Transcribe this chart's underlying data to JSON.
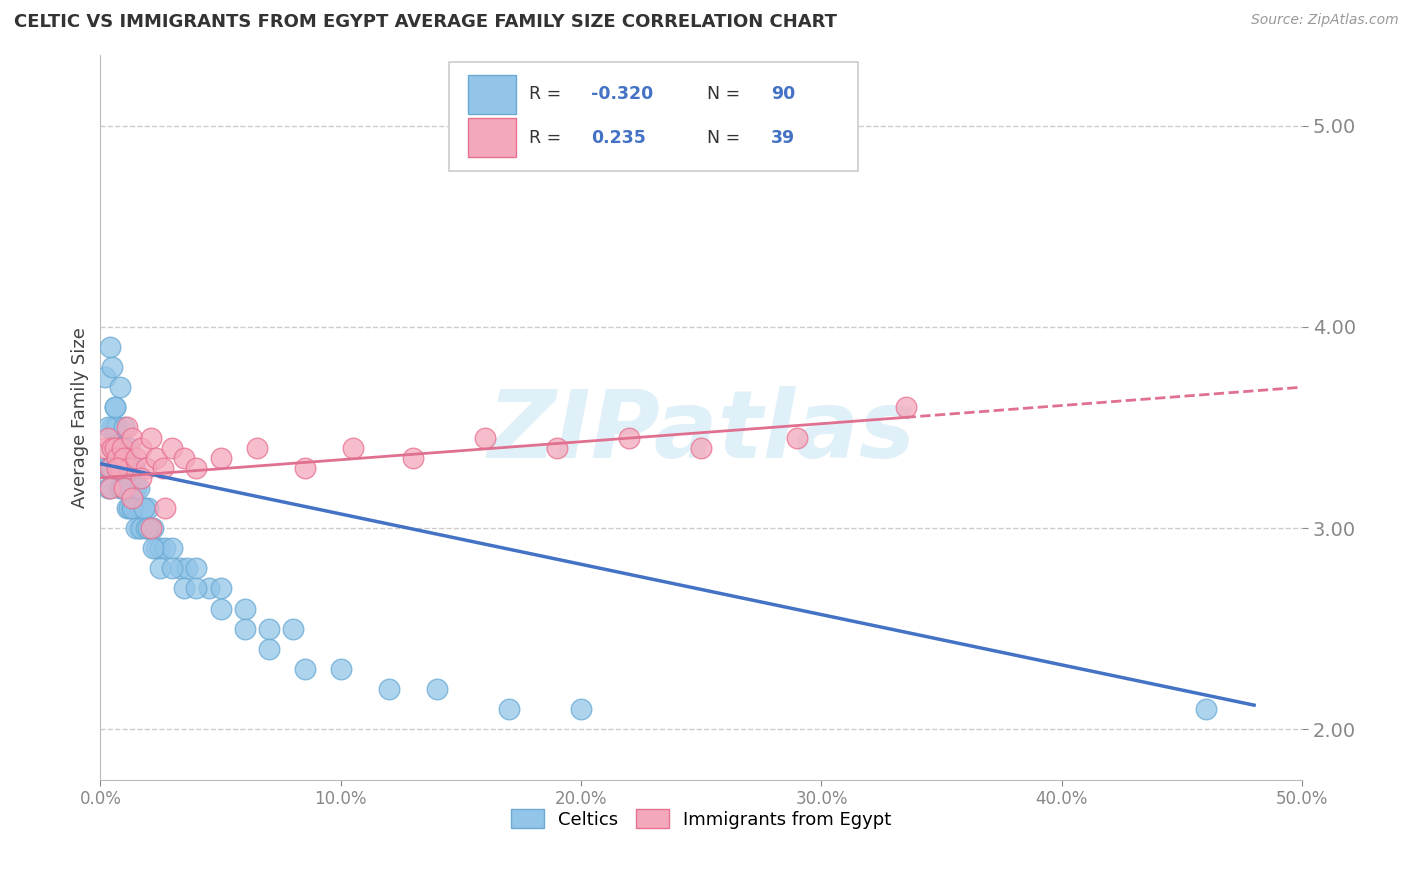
{
  "title": "CELTIC VS IMMIGRANTS FROM EGYPT AVERAGE FAMILY SIZE CORRELATION CHART",
  "source": "Source: ZipAtlas.com",
  "ylabel": "Average Family Size",
  "xlim": [
    0.0,
    50.0
  ],
  "ylim": [
    1.75,
    5.35
  ],
  "yticks": [
    2.0,
    3.0,
    4.0,
    5.0
  ],
  "xticks": [
    0.0,
    10.0,
    20.0,
    30.0,
    40.0,
    50.0
  ],
  "celtics_color": "#92c5e8",
  "egypt_color": "#f4a8bb",
  "celtics_edge_color": "#6aaad4",
  "egypt_edge_color": "#e87090",
  "celtics_trend_color": "#4472C4",
  "egypt_trend_color": "#e07090",
  "celtics_x": [
    0.2,
    0.3,
    0.3,
    0.4,
    0.4,
    0.5,
    0.5,
    0.5,
    0.6,
    0.6,
    0.6,
    0.7,
    0.7,
    0.7,
    0.8,
    0.8,
    0.8,
    0.9,
    0.9,
    0.9,
    1.0,
    1.0,
    1.0,
    1.1,
    1.1,
    1.1,
    1.2,
    1.2,
    1.2,
    1.3,
    1.3,
    1.4,
    1.4,
    1.5,
    1.5,
    1.6,
    1.6,
    1.7,
    1.8,
    1.9,
    2.0,
    2.0,
    2.1,
    2.2,
    2.3,
    2.5,
    2.7,
    3.0,
    3.3,
    3.6,
    4.0,
    4.5,
    5.0,
    6.0,
    7.0,
    8.0,
    0.2,
    0.3,
    0.4,
    0.5,
    0.6,
    0.7,
    0.8,
    0.9,
    1.0,
    1.1,
    1.2,
    1.3,
    1.4,
    1.5,
    1.6,
    1.7,
    1.8,
    1.9,
    2.0,
    2.2,
    2.5,
    3.0,
    3.5,
    4.0,
    5.0,
    6.0,
    7.0,
    8.5,
    10.0,
    12.0,
    14.0,
    17.0,
    20.0,
    46.0
  ],
  "celtics_y": [
    3.3,
    3.3,
    3.2,
    3.3,
    3.2,
    3.5,
    3.4,
    3.3,
    3.6,
    3.5,
    3.4,
    3.5,
    3.4,
    3.3,
    3.4,
    3.3,
    3.2,
    3.4,
    3.3,
    3.2,
    3.4,
    3.3,
    3.2,
    3.3,
    3.2,
    3.1,
    3.3,
    3.2,
    3.1,
    3.2,
    3.1,
    3.2,
    3.1,
    3.2,
    3.1,
    3.1,
    3.0,
    3.1,
    3.1,
    3.0,
    3.1,
    3.0,
    3.0,
    3.0,
    2.9,
    2.9,
    2.9,
    2.9,
    2.8,
    2.8,
    2.8,
    2.7,
    2.7,
    2.6,
    2.5,
    2.5,
    3.75,
    3.5,
    3.9,
    3.8,
    3.6,
    3.4,
    3.7,
    3.3,
    3.5,
    3.2,
    3.4,
    3.1,
    3.3,
    3.0,
    3.2,
    3.0,
    3.1,
    3.0,
    3.0,
    2.9,
    2.8,
    2.8,
    2.7,
    2.7,
    2.6,
    2.5,
    2.4,
    2.3,
    2.3,
    2.2,
    2.2,
    2.1,
    2.1,
    2.1
  ],
  "egypt_x": [
    0.2,
    0.3,
    0.4,
    0.5,
    0.6,
    0.7,
    0.8,
    0.9,
    1.0,
    1.1,
    1.2,
    1.3,
    1.5,
    1.7,
    1.9,
    2.1,
    2.3,
    2.6,
    3.0,
    3.5,
    4.0,
    5.0,
    6.5,
    8.5,
    10.5,
    13.0,
    16.0,
    19.0,
    22.0,
    25.0,
    29.0,
    33.5,
    0.4,
    0.7,
    1.0,
    1.3,
    1.7,
    2.1,
    2.7
  ],
  "egypt_y": [
    3.4,
    3.45,
    3.3,
    3.4,
    3.4,
    3.35,
    3.3,
    3.4,
    3.35,
    3.5,
    3.3,
    3.45,
    3.35,
    3.4,
    3.3,
    3.45,
    3.35,
    3.3,
    3.4,
    3.35,
    3.3,
    3.35,
    3.4,
    3.3,
    3.4,
    3.35,
    3.45,
    3.4,
    3.45,
    3.4,
    3.45,
    3.6,
    3.2,
    3.3,
    3.2,
    3.15,
    3.25,
    3.0,
    3.1
  ],
  "celtics_trend_start_x": 0.0,
  "celtics_trend_start_y": 3.32,
  "celtics_trend_end_x": 48.0,
  "celtics_trend_end_y": 2.12,
  "egypt_trend_solid_start_x": 0.0,
  "egypt_trend_solid_start_y": 3.25,
  "egypt_trend_solid_end_x": 33.5,
  "egypt_trend_solid_end_y": 3.55,
  "egypt_trend_dash_start_x": 33.5,
  "egypt_trend_dash_start_y": 3.55,
  "egypt_trend_dash_end_x": 50.0,
  "egypt_trend_dash_end_y": 3.7,
  "legend_label1": "Celtics",
  "legend_label2": "Immigrants from Egypt",
  "watermark_text": "ZIPatlas",
  "background_color": "#ffffff"
}
